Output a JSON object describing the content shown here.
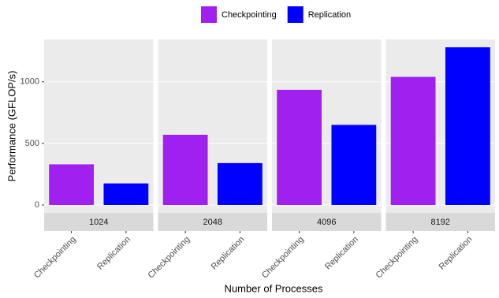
{
  "chart_data": {
    "type": "bar",
    "x_label": "Number of Processes",
    "y_label": "Performance (GFLOP/s)",
    "categories": [
      "Checkpointing",
      "Replication"
    ],
    "series": [
      {
        "name": "Checkpointing",
        "color": "#a020f0"
      },
      {
        "name": "Replication",
        "color": "#0000ff"
      }
    ],
    "facets": [
      {
        "label": "1024",
        "values": [
          330,
          175
        ]
      },
      {
        "label": "2048",
        "values": [
          570,
          340
        ]
      },
      {
        "label": "4096",
        "values": [
          935,
          650
        ]
      },
      {
        "label": "8192",
        "values": [
          1040,
          1280
        ]
      }
    ],
    "ylim": [
      -64,
      1344
    ],
    "yticks": [
      0,
      500,
      1000
    ],
    "grid": true
  }
}
